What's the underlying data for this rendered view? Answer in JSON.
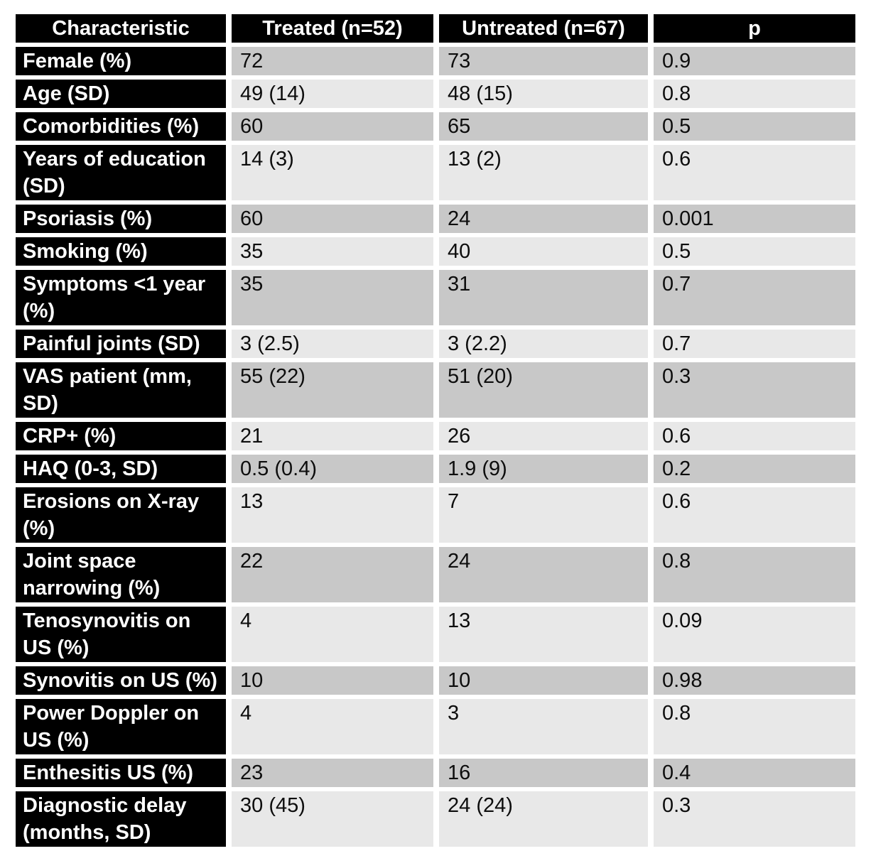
{
  "table": {
    "columns": [
      "Characteristic",
      "Treated (n=52)",
      "Untreated (n=67)",
      "p"
    ],
    "rows": [
      {
        "label": "Female (%)",
        "values": [
          "72",
          "73",
          "0.9"
        ]
      },
      {
        "label": "Age (SD)",
        "values": [
          "49 (14)",
          "48 (15)",
          "0.8"
        ]
      },
      {
        "label": "Comorbidities (%)",
        "values": [
          "60",
          "65",
          "0.5"
        ]
      },
      {
        "label": "Years of education (SD)",
        "values": [
          "14 (3)",
          "13 (2)",
          "0.6"
        ]
      },
      {
        "label": "Psoriasis (%)",
        "values": [
          "60",
          "24",
          "0.001"
        ]
      },
      {
        "label": "Smoking (%)",
        "values": [
          "35",
          "40",
          "0.5"
        ]
      },
      {
        "label": "Symptoms <1 year (%)",
        "values": [
          "35",
          "31",
          "0.7"
        ]
      },
      {
        "label": "Painful joints (SD)",
        "values": [
          "3 (2.5)",
          "3 (2.2)",
          "0.7"
        ]
      },
      {
        "label": "VAS patient (mm, SD)",
        "values": [
          "55 (22)",
          "51 (20)",
          "0.3"
        ]
      },
      {
        "label": "CRP+ (%)",
        "values": [
          "21",
          "26",
          "0.6"
        ]
      },
      {
        "label": "HAQ (0-3, SD)",
        "values": [
          "0.5 (0.4)",
          "1.9 (9)",
          "0.2"
        ]
      },
      {
        "label": "Erosions on X-ray (%)",
        "values": [
          "13",
          "7",
          "0.6"
        ]
      },
      {
        "label": "Joint space narrowing (%)",
        "values": [
          "22",
          "24",
          "0.8"
        ]
      },
      {
        "label": "Tenosynovitis on US (%)",
        "values": [
          "4",
          "13",
          "0.09"
        ]
      },
      {
        "label": "Synovitis on US (%)",
        "values": [
          "10",
          "10",
          "0.98"
        ]
      },
      {
        "label": "Power Doppler on US (%)",
        "values": [
          "4",
          "3",
          "0.8"
        ]
      },
      {
        "label": "Enthesitis US (%)",
        "values": [
          "23",
          "16",
          "0.4"
        ]
      },
      {
        "label": "Diagnostic delay (months, SD)",
        "values": [
          "30 (45)",
          "24 (24)",
          "0.3"
        ]
      }
    ],
    "colors": {
      "header_bg": "#000000",
      "header_text": "#ffffff",
      "row_dark": "#c8c8c8",
      "row_light": "#e8e8e8"
    }
  }
}
